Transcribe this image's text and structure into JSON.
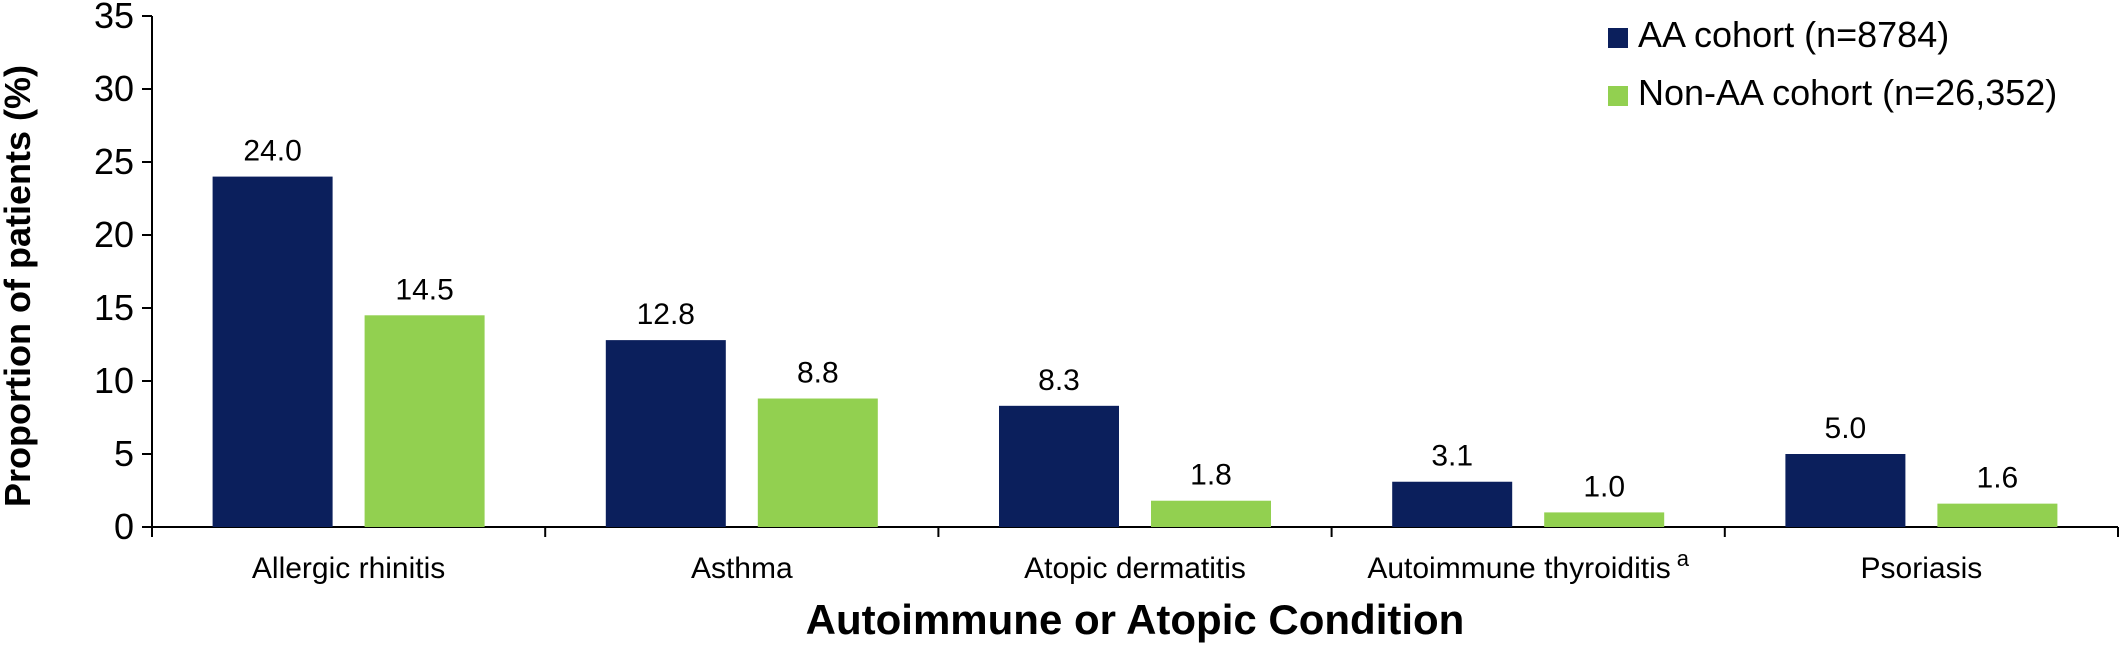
{
  "chart_data": {
    "type": "bar",
    "xlabel": "Autoimmune or Atopic Condition",
    "ylabel": "Proportion of patients (%)",
    "ylim": [
      0,
      35
    ],
    "yticks": [
      "0",
      "5",
      "10",
      "15",
      "20",
      "25",
      "30",
      "35"
    ],
    "categories": [
      "Allergic rhinitis",
      "Asthma",
      "Atopic dermatitis",
      "Autoimmune thyroiditis",
      "Psoriasis"
    ],
    "category_superscripts": [
      "",
      "",
      "",
      "a",
      ""
    ],
    "series": [
      {
        "name": "AA cohort (n=8784)",
        "color": "#0b1f5c",
        "values": [
          24.0,
          12.8,
          8.3,
          3.1,
          5.0
        ],
        "labels": [
          "24.0",
          "12.8",
          "8.3",
          "3.1",
          "5.0"
        ]
      },
      {
        "name": "Non-AA cohort (n=26,352)",
        "color": "#92d050",
        "values": [
          14.5,
          8.8,
          1.8,
          1.0,
          1.6
        ],
        "labels": [
          "14.5",
          "8.8",
          "1.8",
          "1.0",
          "1.6"
        ]
      }
    ],
    "legend_position": "top-right",
    "grid": false
  }
}
